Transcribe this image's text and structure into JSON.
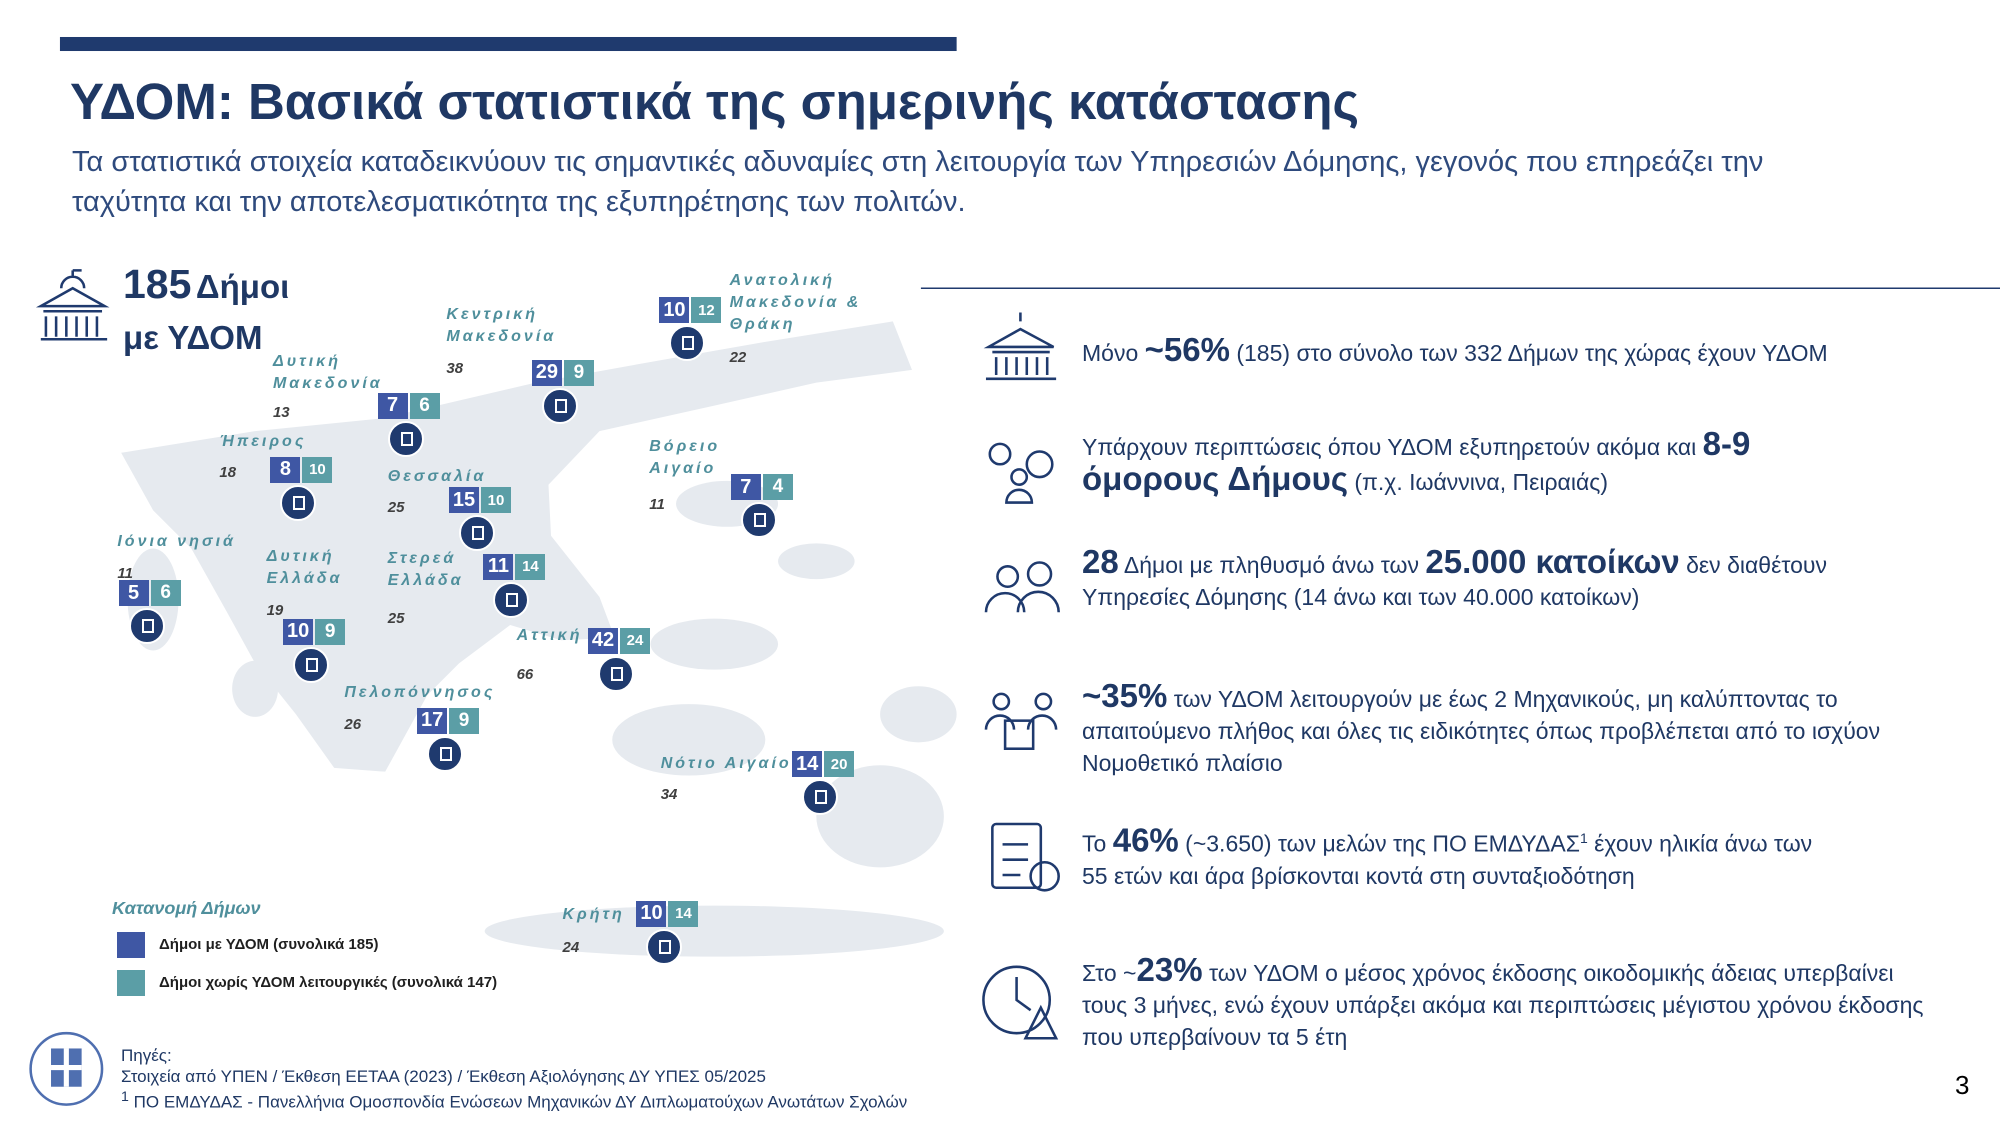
{
  "header": {
    "title": "ΥΔΟΜ: Βασικά στατιστικά της σημερινής κατάστασης",
    "subtitle": "Τα στατιστικά στοιχεία καταδεικνύουν τις σημαντικές αδυναμίες στη λειτουργία των Υπηρεσιών Δόμησης, γεγονός που επηρεάζει την ταχύτητα και την αποτελεσματικότητα της εξυπηρέτησης των πολιτών."
  },
  "headline": {
    "number": 185,
    "unit": "Δήμοι",
    "line2": "με ΥΔΟΜ"
  },
  "regions": [
    {
      "name": "Ανατολική Μακεδονία & Θράκη",
      "municipalities": 22,
      "with_ydom": 10,
      "without_ydom": 12
    },
    {
      "name": "Κεντρική Μακεδονία",
      "municipalities": 38,
      "with_ydom": 29,
      "without_ydom": 9
    },
    {
      "name": "Δυτική Μακεδονία",
      "municipalities": 13,
      "with_ydom": 7,
      "without_ydom": 6
    },
    {
      "name": "Ήπειρος",
      "municipalities": 18,
      "with_ydom": 8,
      "without_ydom": 10
    },
    {
      "name": "Θεσσαλία",
      "municipalities": 25,
      "with_ydom": 15,
      "without_ydom": 10
    },
    {
      "name": "Βόρειο Αιγαίο",
      "municipalities": 11,
      "with_ydom": 7,
      "without_ydom": 4
    },
    {
      "name": "Ιόνια νησιά",
      "municipalities": 11,
      "with_ydom": 5,
      "without_ydom": 6
    },
    {
      "name": "Δυτική Ελλάδα",
      "municipalities": 19,
      "with_ydom": 10,
      "without_ydom": 9
    },
    {
      "name": "Στερεά Ελλάδα",
      "municipalities": 25,
      "with_ydom": 11,
      "without_ydom": 14
    },
    {
      "name": "Αττική",
      "municipalities": 66,
      "with_ydom": 42,
      "without_ydom": 24
    },
    {
      "name": "Πελοπόννησος",
      "municipalities": 26,
      "with_ydom": 17,
      "without_ydom": 9
    },
    {
      "name": "Νότιο Αιγαίο",
      "municipalities": 34,
      "with_ydom": 14,
      "without_ydom": 20
    },
    {
      "name": "Κρήτη",
      "municipalities": 24,
      "with_ydom": 10,
      "without_ydom": 14
    }
  ],
  "legend": {
    "title": "Κατανομή Δήμων",
    "items": [
      {
        "label": "Δήμοι με ΥΔΟΜ (συνολικά 185)",
        "color": "#3f57a4"
      },
      {
        "label": "Δήμοι χωρίς ΥΔΟΜ λειτουργικές (συνολικά 147)",
        "color": "#5b9ea6"
      }
    ]
  },
  "stats": [
    {
      "parts": [
        {
          "text": "Μόνο "
        },
        {
          "text": "~56%",
          "bold": true
        },
        {
          "text": " (185) στο σύνολο των 332 Δήμων της χώρας έχουν ΥΔΟΜ"
        }
      ]
    },
    {
      "parts": [
        {
          "text": "Υπάρχουν περιπτώσεις όπου ΥΔΟΜ εξυπηρετούν ακόμα και "
        },
        {
          "text": "8-9",
          "bold": true
        },
        {
          "text": " όμορους Δήμους",
          "bold": true
        },
        {
          "text": " (π.χ. Ιωάννινα, Πειραιάς)"
        }
      ]
    },
    {
      "parts": [
        {
          "text": "28",
          "bold": true
        },
        {
          "text": " Δήμοι με πληθυσμό άνω των "
        },
        {
          "text": "25.000 κατοίκων",
          "bold": true
        },
        {
          "text": " δεν διαθέτουν Υπηρεσίες Δόμησης (14 άνω και των 40.000 κατοίκων)"
        }
      ]
    },
    {
      "parts": [
        {
          "text": "~35%",
          "bold": true
        },
        {
          "text": " των ΥΔΟΜ λειτουργούν με έως 2 Μηχανικούς, μη καλύπτοντας το απαιτούμενο πλήθος και όλες τις ειδικότητες όπως προβλέπεται από το ισχύον Νομοθετικό πλαίσιο"
        }
      ]
    },
    {
      "parts": [
        {
          "text": "Το "
        },
        {
          "text": "46%",
          "bold": true
        },
        {
          "text": " (~3.650) των μελών της ΠΟ ΕΜΔΥΔΑΣ"
        },
        {
          "text": "1",
          "sup": true
        },
        {
          "text": " έχουν ηλικία άνω των 55 ετών και άρα βρίσκονται κοντά στη συνταξιοδότηση"
        }
      ]
    },
    {
      "parts": [
        {
          "text": "Στο ~"
        },
        {
          "text": "23%",
          "bold": true
        },
        {
          "text": " των ΥΔΟΜ ο μέσος χρόνος έκδοσης οικοδομικής άδειας υπερβαίνει τους 3 μήνες, ενώ έχουν υπάρξει ακόμα και περιπτώσεις μέγιστου χρόνου έκδοσης που υπερβαίνουν τα 5 έτη"
        }
      ]
    }
  ],
  "sources": {
    "label": "Πηγές:",
    "line": "Στοιχεία από ΥΠΕΝ / Έκθεση ΕΕΤΑΑ (2023) / Έκθεση Αξιολόγησης ΔΥ ΥΠΕΣ 05/2025",
    "footnote_mark": "1",
    "footnote": " ΠΟ ΕΜΔΥΔΑΣ -  Πανελλήνια Ομοσπονδία Ενώσεων Μηχανικών ΔΥ Διπλωματούχων Ανωτάτων Σχολών"
  },
  "page_number": 3
}
